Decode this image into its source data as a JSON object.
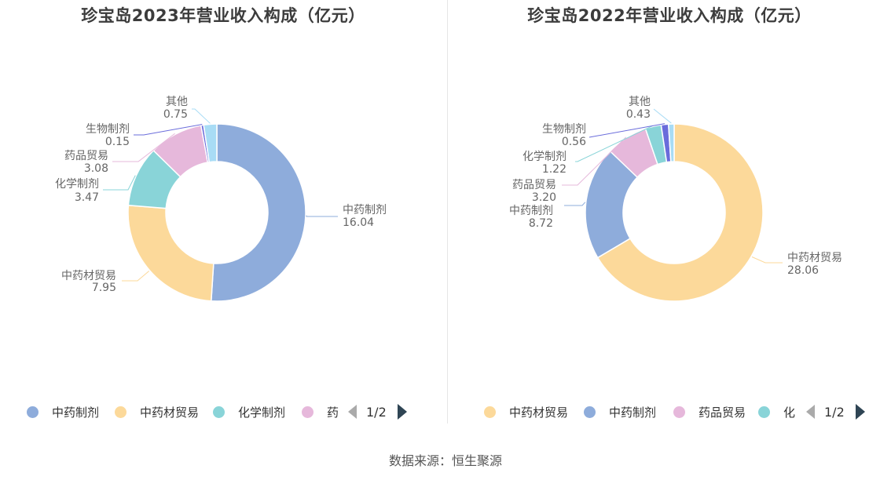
{
  "charts": [
    {
      "title": "珍宝岛2023年营业收入构成（亿元）",
      "legend_items": [
        "中药制剂",
        "中药材贸易",
        "化学制剂",
        "药"
      ],
      "pager": "1/2",
      "chart_data": {
        "type": "pie",
        "title": "珍宝岛2023年营业收入构成（亿元）",
        "slices": [
          {
            "label": "中药制剂",
            "value": 16.04,
            "color": "#8eacdb"
          },
          {
            "label": "中药材贸易",
            "value": 7.95,
            "color": "#fcd99a"
          },
          {
            "label": "化学制剂",
            "value": 3.47,
            "color": "#89d4d8"
          },
          {
            "label": "药品贸易",
            "value": 3.08,
            "color": "#e6b8db"
          },
          {
            "label": "生物制剂",
            "value": 0.15,
            "color": "#6a6cdb"
          },
          {
            "label": "其他",
            "value": 0.75,
            "color": "#a8dcf5"
          }
        ],
        "value_labels": [
          "16.04",
          "7.95",
          "3.47",
          "3.08",
          "0.15",
          "0.75"
        ]
      }
    },
    {
      "title": "珍宝岛2022年营业收入构成（亿元）",
      "legend_items": [
        "中药材贸易",
        "中药制剂",
        "药品贸易",
        "化"
      ],
      "pager": "1/2",
      "chart_data": {
        "type": "pie",
        "title": "珍宝岛2022年营业收入构成（亿元）",
        "slices": [
          {
            "label": "中药材贸易",
            "value": 28.06,
            "color": "#fcd99a"
          },
          {
            "label": "中药制剂",
            "value": 8.72,
            "color": "#8eacdb"
          },
          {
            "label": "药品贸易",
            "value": 3.2,
            "color": "#e6b8db"
          },
          {
            "label": "化学制剂",
            "value": 1.22,
            "color": "#89d4d8"
          },
          {
            "label": "生物制剂",
            "value": 0.56,
            "color": "#6a6cdb"
          },
          {
            "label": "其他",
            "value": 0.43,
            "color": "#a8dcf5"
          }
        ],
        "value_labels": [
          "28.06",
          "8.72",
          "3.20",
          "1.22",
          "0.56",
          "0.43"
        ]
      }
    }
  ],
  "legend_colors": {
    "中药制剂": "#8eacdb",
    "中药材贸易": "#fcd99a",
    "化学制剂": "#89d4d8",
    "药品贸易": "#e6b8db",
    "药": "#e6b8db",
    "化": "#89d4d8"
  },
  "source": "数据来源：恒生聚源"
}
